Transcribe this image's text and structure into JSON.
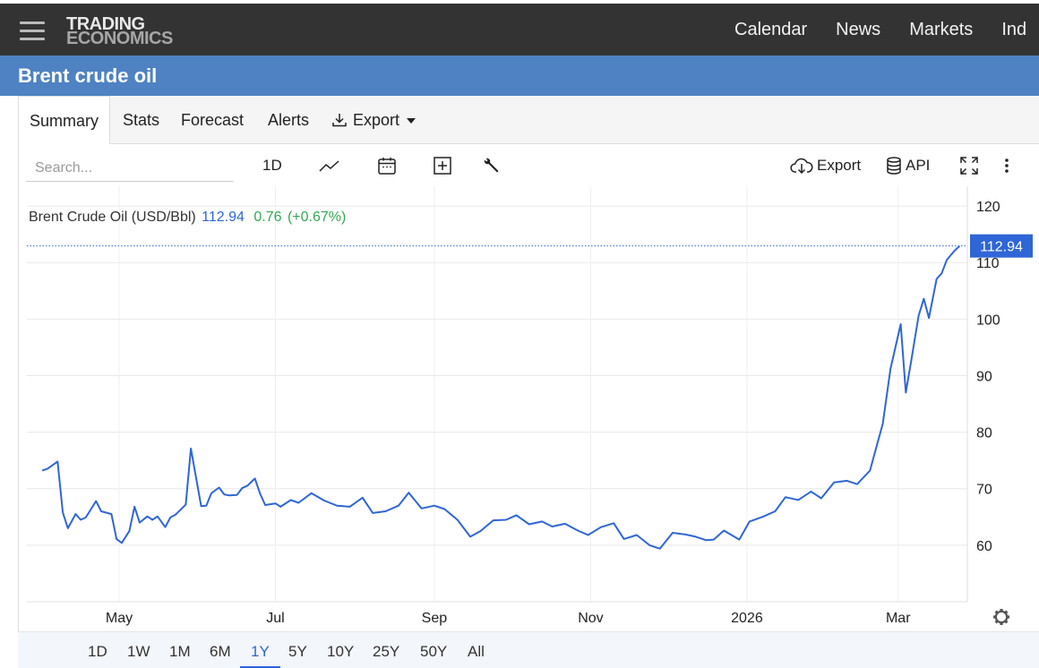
{
  "brand": {
    "line1": "TRADING",
    "line2": "ECONOMICS"
  },
  "topnav": [
    "Calendar",
    "News",
    "Markets",
    "Ind"
  ],
  "page_title": "Brent crude oil",
  "tabs": {
    "summary": "Summary",
    "stats": "Stats",
    "forecast": "Forecast",
    "alerts": "Alerts",
    "export": "Export"
  },
  "toolbar": {
    "search_placeholder": "Search...",
    "interval": "1D",
    "export": "Export",
    "api": "API"
  },
  "legend": {
    "name": "Brent Crude Oil (USD/Bbl)",
    "value": "112.94",
    "change": "0.76",
    "change_pct": "(+0.67%)"
  },
  "ranges": [
    "1D",
    "1W",
    "1M",
    "6M",
    "1Y",
    "5Y",
    "10Y",
    "25Y",
    "50Y",
    "All"
  ],
  "active_range": "1Y",
  "colors": {
    "line": "#2f66d6",
    "title_bar": "#4e82c2",
    "top_bar": "#333333",
    "change_up": "#32a852"
  },
  "chart_data": {
    "type": "line",
    "series": [
      {
        "name": "Brent Crude Oil (USD/Bbl)",
        "x": [
          "2025-04-01",
          "2025-04-03",
          "2025-04-07",
          "2025-04-09",
          "2025-04-11",
          "2025-04-14",
          "2025-04-16",
          "2025-04-18",
          "2025-04-22",
          "2025-04-24",
          "2025-04-28",
          "2025-04-30",
          "2025-05-02",
          "2025-05-05",
          "2025-05-07",
          "2025-05-09",
          "2025-05-12",
          "2025-05-14",
          "2025-05-16",
          "2025-05-19",
          "2025-05-21",
          "2025-05-23",
          "2025-05-27",
          "2025-05-29",
          "2025-06-02",
          "2025-06-04",
          "2025-06-06",
          "2025-06-09",
          "2025-06-11",
          "2025-06-13",
          "2025-06-16",
          "2025-06-18",
          "2025-06-20",
          "2025-06-23",
          "2025-06-25",
          "2025-06-27",
          "2025-07-01",
          "2025-07-03",
          "2025-07-07",
          "2025-07-10",
          "2025-07-15",
          "2025-07-20",
          "2025-07-25",
          "2025-07-30",
          "2025-08-04",
          "2025-08-08",
          "2025-08-13",
          "2025-08-18",
          "2025-08-22",
          "2025-08-27",
          "2025-09-01",
          "2025-09-05",
          "2025-09-10",
          "2025-09-15",
          "2025-09-19",
          "2025-09-24",
          "2025-09-29",
          "2025-10-03",
          "2025-10-08",
          "2025-10-13",
          "2025-10-17",
          "2025-10-22",
          "2025-10-27",
          "2025-10-31",
          "2025-11-05",
          "2025-11-10",
          "2025-11-14",
          "2025-11-19",
          "2025-11-24",
          "2025-11-28",
          "2025-12-03",
          "2025-12-08",
          "2025-12-12",
          "2025-12-16",
          "2025-12-19",
          "2025-12-23",
          "2025-12-29",
          "2026-01-02",
          "2026-01-07",
          "2026-01-12",
          "2026-01-16",
          "2026-01-21",
          "2026-01-26",
          "2026-01-30",
          "2026-02-04",
          "2026-02-09",
          "2026-02-13",
          "2026-02-18",
          "2026-02-23",
          "2026-02-26",
          "2026-03-02",
          "2026-03-04",
          "2026-03-06",
          "2026-03-09",
          "2026-03-11",
          "2026-03-13",
          "2026-03-16",
          "2026-03-18",
          "2026-03-20",
          "2026-03-23",
          "2026-03-25"
        ],
        "y": [
          73.2,
          73.5,
          74.8,
          65.8,
          63.0,
          65.5,
          64.5,
          64.9,
          67.8,
          66.0,
          65.5,
          61.1,
          60.4,
          62.5,
          66.8,
          64.0,
          65.1,
          64.5,
          65.1,
          63.2,
          64.9,
          65.4,
          67.2,
          77.1,
          66.9,
          67.0,
          69.2,
          70.2,
          69.0,
          68.8,
          68.9,
          70.1,
          70.5,
          71.8,
          69.1,
          67.1,
          67.4,
          66.8,
          68.0,
          67.5,
          69.2,
          67.9,
          67.0,
          66.8,
          68.4,
          65.7,
          66.0,
          67.0,
          69.3,
          66.5,
          67.0,
          66.4,
          64.5,
          61.5,
          62.5,
          64.4,
          64.5,
          65.3,
          63.7,
          64.2,
          63.3,
          63.8,
          62.6,
          61.8,
          63.2,
          63.9,
          61.1,
          61.8,
          60.0,
          59.4,
          62.2,
          61.9,
          61.5,
          60.9,
          61.0,
          62.6,
          61.0,
          64.2,
          65.0,
          66.0,
          68.5,
          68.0,
          69.5,
          68.3,
          71.1,
          71.4,
          70.8,
          73.2,
          81.5,
          91.2,
          99.1,
          87.0,
          92.4,
          100.6,
          103.6,
          100.2,
          107.1,
          108.1,
          110.5,
          112.1,
          112.94
        ]
      }
    ],
    "xlabel": "",
    "ylabel": "",
    "x_tick_labels": [
      "May",
      "Jul",
      "Sep",
      "Nov",
      "2026",
      "Mar"
    ],
    "x_tick_dates": [
      "2025-05-01",
      "2025-07-01",
      "2025-09-01",
      "2025-11-01",
      "2026-01-01",
      "2026-03-01"
    ],
    "y_ticks": [
      60,
      70,
      80,
      90,
      100,
      110,
      120
    ],
    "ylim": [
      50,
      123.5
    ],
    "last_value": "112.94",
    "grid": true,
    "y_axis_position": "right"
  }
}
